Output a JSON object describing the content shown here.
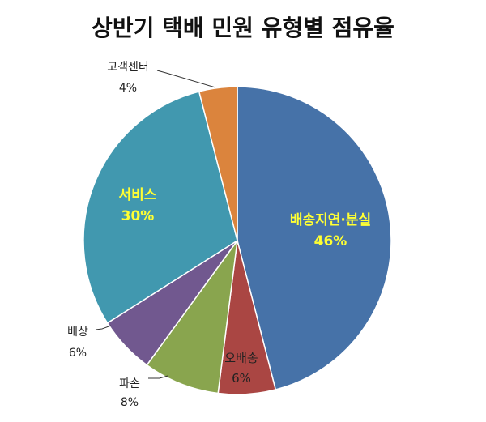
{
  "chart_data": {
    "type": "pie",
    "title": "상반기 택배 민원 유형별 점유율",
    "slices": [
      {
        "label": "배송지연·분실",
        "value": 46,
        "value_label": "46%",
        "color": "#4672A8",
        "label_color": "#FFFF33",
        "label_style": "inside-bold"
      },
      {
        "label": "오배송",
        "value": 6,
        "value_label": "6%",
        "color": "#AA4643",
        "label_color": "#222222",
        "label_style": "inside"
      },
      {
        "label": "파손",
        "value": 8,
        "value_label": "8%",
        "color": "#89A54E",
        "label_color": "#222222",
        "label_style": "outside"
      },
      {
        "label": "배상",
        "value": 6,
        "value_label": "6%",
        "color": "#71588F",
        "label_color": "#222222",
        "label_style": "outside"
      },
      {
        "label": "서비스",
        "value": 30,
        "value_label": "30%",
        "color": "#4198AF",
        "label_color": "#FFFF33",
        "label_style": "inside-bold"
      },
      {
        "label": "고객센터",
        "value": 4,
        "value_label": "4%",
        "color": "#DB843D",
        "label_color": "#222222",
        "label_style": "outside"
      }
    ],
    "start_angle": "12 o'clock",
    "direction": "clockwise",
    "legend": "none"
  }
}
